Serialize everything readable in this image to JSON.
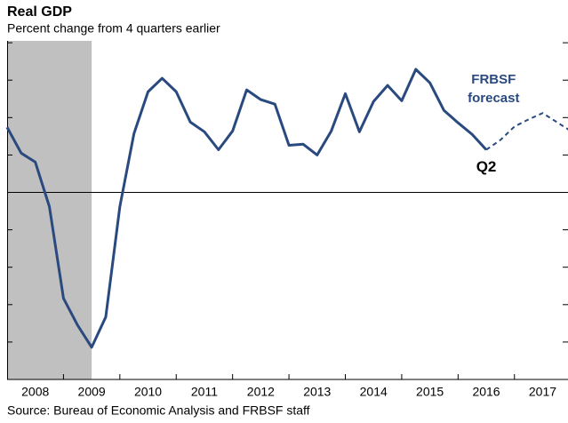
{
  "chart_data": {
    "type": "line",
    "title": "Real GDP",
    "subtitle": "Percent change from 4 quarters earlier",
    "source": "Source: Bureau of Economic Analysis and FRBSF staff",
    "annotations": [
      {
        "text": "FRBSF",
        "x": 2016.63,
        "y": 3.0,
        "color": "#2a4a7f"
      },
      {
        "text": "forecast",
        "x": 2016.63,
        "y": 2.5,
        "color": "#2a4a7f"
      },
      {
        "text": "Q2",
        "x": 2016.5,
        "y": 0.67,
        "color": "#000000"
      }
    ],
    "x": [
      2008.0,
      2008.25,
      2008.5,
      2008.75,
      2009.0,
      2009.25,
      2009.5,
      2009.75,
      2010.0,
      2010.25,
      2010.5,
      2010.75,
      2011.0,
      2011.25,
      2011.5,
      2011.75,
      2012.0,
      2012.25,
      2012.5,
      2012.75,
      2013.0,
      2013.25,
      2013.5,
      2013.75,
      2014.0,
      2014.25,
      2014.5,
      2014.75,
      2015.0,
      2015.25,
      2015.5,
      2015.75,
      2016.0,
      2016.25,
      2016.5,
      2016.75,
      2017.0,
      2017.25,
      2017.5,
      2017.75,
      2018.0
    ],
    "series": [
      {
        "color": "#2a4a7f",
        "dashed": false,
        "values": [
          1.74,
          1.05,
          0.81,
          -0.38,
          -2.83,
          -3.55,
          -4.14,
          -3.33,
          -0.38,
          1.57,
          2.69,
          3.05,
          2.69,
          1.88,
          1.62,
          1.14,
          1.64,
          2.74,
          2.48,
          2.36,
          1.26,
          1.29,
          1.0,
          1.64,
          2.64,
          1.62,
          2.43,
          2.86,
          2.45,
          3.29,
          2.93,
          2.19,
          1.86,
          1.55,
          1.14,
          null,
          null,
          null,
          null,
          null,
          null
        ]
      },
      {
        "color": "#2a4a7f",
        "dashed": true,
        "values": [
          null,
          null,
          null,
          null,
          null,
          null,
          null,
          null,
          null,
          null,
          null,
          null,
          null,
          null,
          null,
          null,
          null,
          null,
          null,
          null,
          null,
          null,
          null,
          null,
          null,
          null,
          null,
          null,
          null,
          null,
          null,
          null,
          null,
          null,
          1.14,
          1.4,
          1.76,
          1.95,
          2.12,
          1.88,
          1.64
        ]
      }
    ],
    "recession": [
      2008.0,
      2009.5
    ],
    "recession_color": "#c0c0c0",
    "xlim": [
      2008.0,
      2017.95
    ],
    "xticks": [
      {
        "value": 2008.5,
        "label": "2008"
      },
      {
        "value": 2009.5,
        "label": "2009"
      },
      {
        "value": 2010.5,
        "label": "2010"
      },
      {
        "value": 2011.5,
        "label": "2011"
      },
      {
        "value": 2012.5,
        "label": "2012"
      },
      {
        "value": 2013.5,
        "label": "2013"
      },
      {
        "value": 2014.5,
        "label": "2014"
      },
      {
        "value": 2015.5,
        "label": "2015"
      },
      {
        "value": 2016.5,
        "label": "2016"
      },
      {
        "value": 2017.5,
        "label": "2017"
      }
    ],
    "ylim": [
      -5,
      4.05
    ],
    "yticks": [
      -4,
      -3,
      -2,
      -1,
      0,
      1,
      2,
      3,
      4
    ]
  }
}
